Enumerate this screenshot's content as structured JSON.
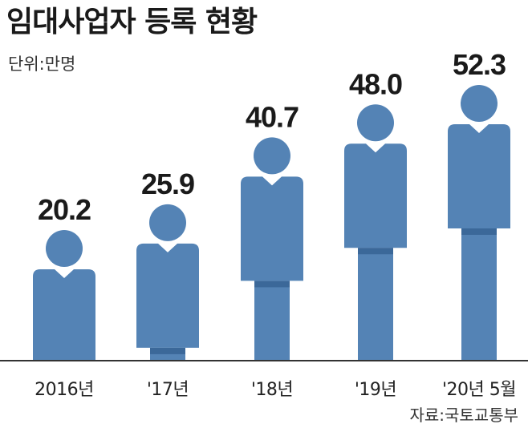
{
  "title": "임대사업자 등록 현황",
  "unit": "단위:만명",
  "source": "자료:국토교통부",
  "colors": {
    "figure": "#5483b5",
    "figure_dark": "#3b6899",
    "axis": "#333333"
  },
  "chart_data": {
    "type": "bar",
    "style": "pictograph-person",
    "title": "임대사업자 등록 현황",
    "ylabel": "단위:만명",
    "categories": [
      "2016년",
      "'17년",
      "'18년",
      "'19년",
      "'20년 5월"
    ],
    "values": [
      20.2,
      25.9,
      40.7,
      48.0,
      52.3
    ],
    "value_labels": [
      "20.2",
      "25.9",
      "40.7",
      "48.0",
      "52.3"
    ],
    "ylim": [
      0,
      52.3
    ],
    "grid": false,
    "legend": "none"
  }
}
